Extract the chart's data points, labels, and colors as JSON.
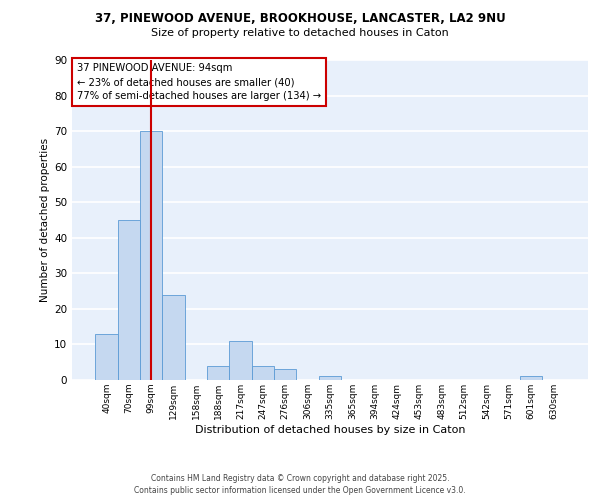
{
  "title_line1": "37, PINEWOOD AVENUE, BROOKHOUSE, LANCASTER, LA2 9NU",
  "title_line2": "Size of property relative to detached houses in Caton",
  "xlabel": "Distribution of detached houses by size in Caton",
  "ylabel": "Number of detached properties",
  "bar_labels": [
    "40sqm",
    "70sqm",
    "99sqm",
    "129sqm",
    "158sqm",
    "188sqm",
    "217sqm",
    "247sqm",
    "276sqm",
    "306sqm",
    "335sqm",
    "365sqm",
    "394sqm",
    "424sqm",
    "453sqm",
    "483sqm",
    "512sqm",
    "542sqm",
    "571sqm",
    "601sqm",
    "630sqm"
  ],
  "bar_values": [
    13,
    45,
    70,
    24,
    0,
    4,
    11,
    4,
    3,
    0,
    1,
    0,
    0,
    0,
    0,
    0,
    0,
    0,
    0,
    1,
    0
  ],
  "bar_color": "#c5d8f0",
  "bar_edge_color": "#5b9bd5",
  "bg_color": "#ffffff",
  "plot_bg_color": "#e8f0fb",
  "grid_color": "#ffffff",
  "vline_color": "#cc0000",
  "vline_x": 2.0,
  "annotation_title": "37 PINEWOOD AVENUE: 94sqm",
  "annotation_line2": "← 23% of detached houses are smaller (40)",
  "annotation_line3": "77% of semi-detached houses are larger (134) →",
  "annotation_box_color": "#ffffff",
  "annotation_border_color": "#cc0000",
  "footer_line1": "Contains HM Land Registry data © Crown copyright and database right 2025.",
  "footer_line2": "Contains public sector information licensed under the Open Government Licence v3.0.",
  "ylim": [
    0,
    90
  ],
  "yticks": [
    0,
    10,
    20,
    30,
    40,
    50,
    60,
    70,
    80,
    90
  ]
}
